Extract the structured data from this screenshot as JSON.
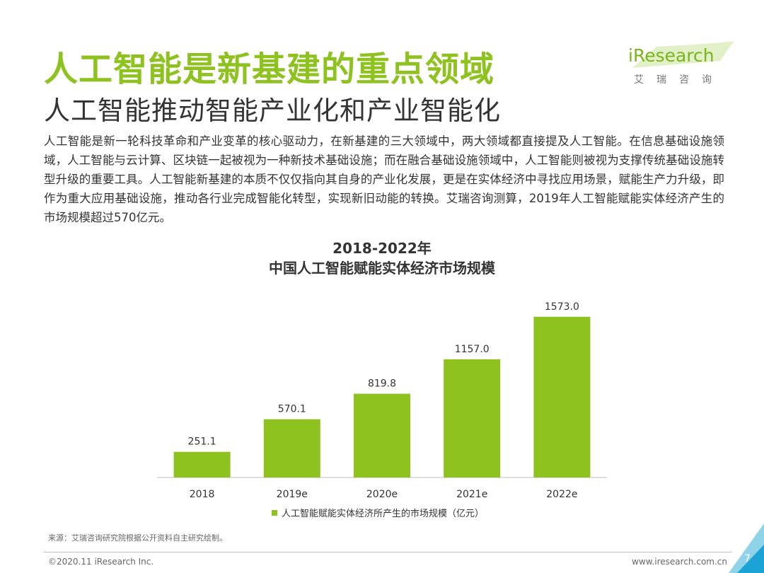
{
  "header": {
    "title": "人工智能是新基建的重点领域",
    "subtitle": "人工智能推动智能产业化和产业智能化"
  },
  "logo": {
    "name": "iResearch",
    "cn_name": "艾瑞咨询"
  },
  "body_text": "人工智能是新一轮科技革命和产业变革的核心驱动力，在新基建的三大领域中，两大领域都直接提及人工智能。在信息基础设施领域，人工智能与云计算、区块链一起被视为一种新技术基础设施；而在融合基础设施领域中，人工智能则被视为支撑传统基础设施转型升级的重要工具。人工智能新基建的本质不仅仅指向其自身的产业化发展，更是在实体经济中寻找应用场景，赋能生产力升级，即作为重大应用基础设施，推动各行业完成智能化转型，实现新旧动能的转换。艾瑞咨询测算，2019年人工智能赋能实体经济产生的市场规模超过570亿元。",
  "chart_data": {
    "type": "bar",
    "title": "2018-2022年",
    "subtitle": "中国人工智能赋能实体经济市场规模",
    "categories": [
      "2018",
      "2019e",
      "2020e",
      "2021e",
      "2022e"
    ],
    "series": [
      {
        "name": "人工智能赋能实体经济所产生的市场规模（亿元）",
        "values": [
          251.1,
          570.1,
          819.8,
          1157.0,
          1573.0
        ],
        "labels": [
          "251.1",
          "570.1",
          "819.8",
          "1157.0",
          "1573.0"
        ]
      }
    ],
    "ylim": [
      0,
      1800
    ],
    "grid": false,
    "legend_position": "bottom",
    "bar_color": "#8dc21f"
  },
  "source": "来源：艾瑞咨询研究院根据公开资料自主研究绘制。",
  "footer": {
    "copyright": "©2020.11 iResearch Inc.",
    "website": "www.iresearch.com.cn",
    "page_number": "7"
  },
  "colors": {
    "accent": "#8dc21f",
    "corner_light": "#8fd3e8",
    "corner_dark": "#1aa3d4"
  }
}
